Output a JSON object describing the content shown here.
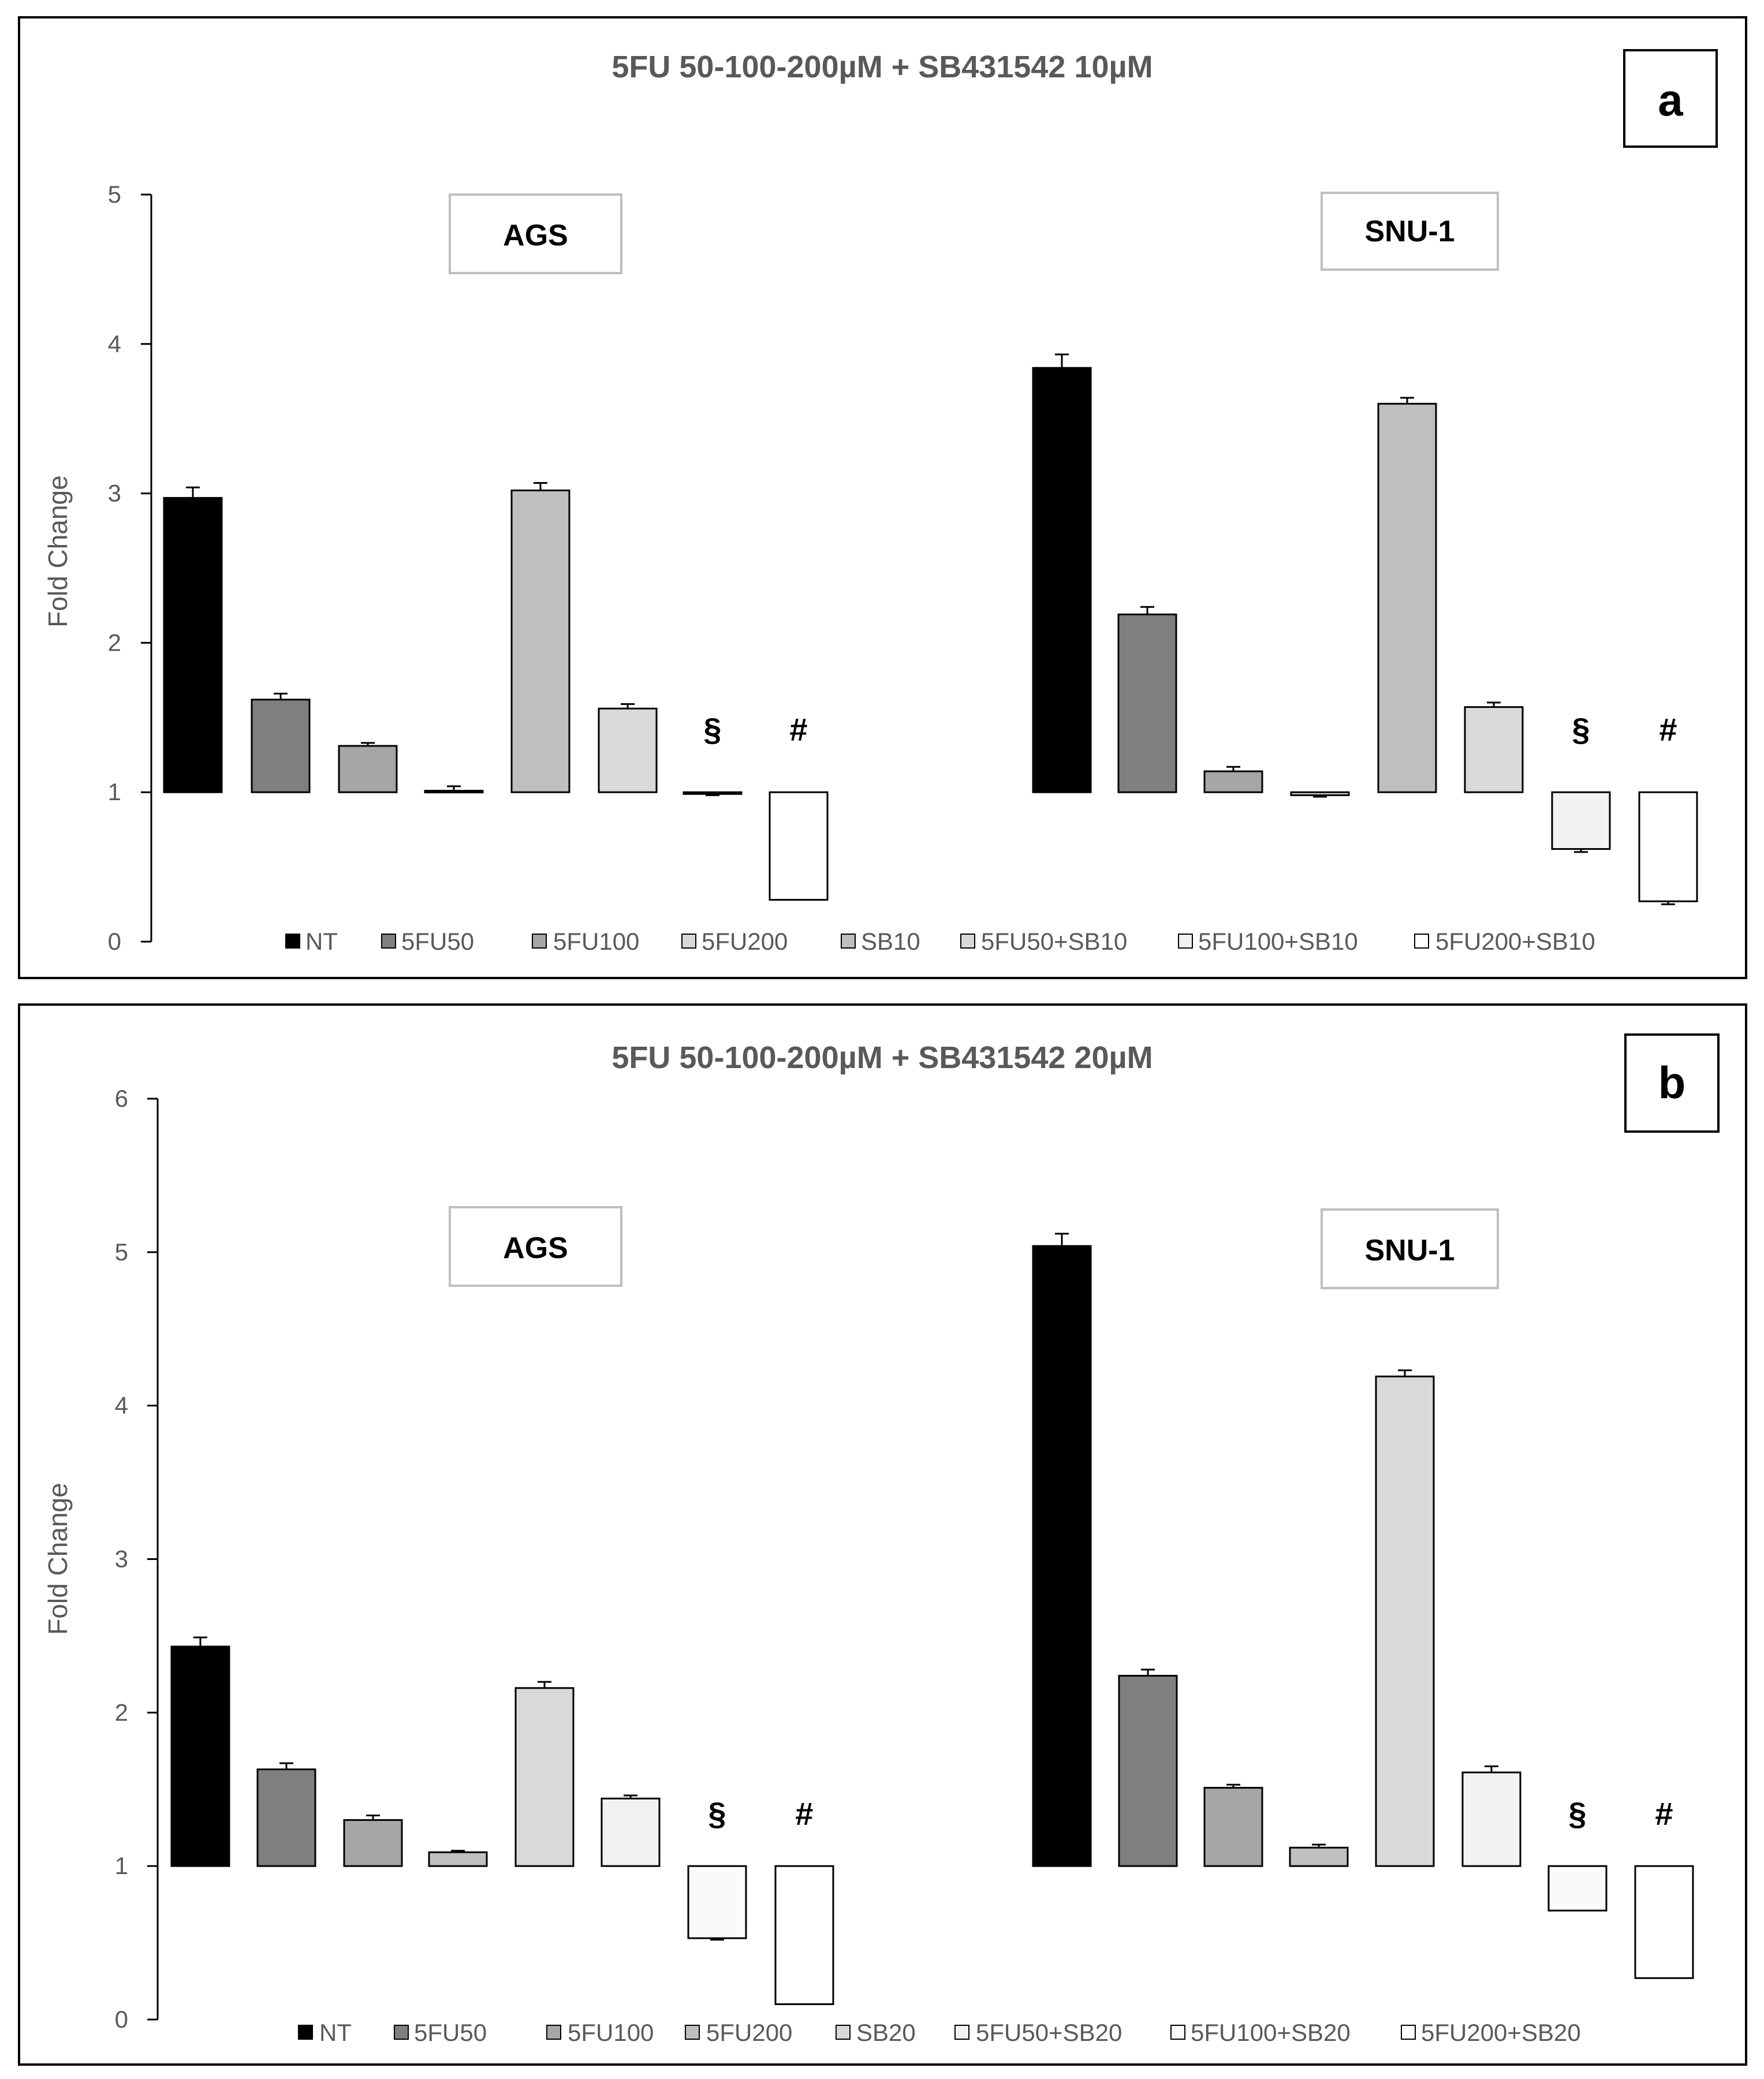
{
  "chart_data": [
    {
      "type": "bar",
      "panel_label": "a",
      "title": "5FU 50-100-200µM + SB431542 10µM",
      "ylabel": "Fold Change",
      "xlabel": "",
      "ylim": [
        0,
        5
      ],
      "yticks": [
        "0",
        "1",
        "2",
        "3",
        "4",
        "5"
      ],
      "baseline": 1,
      "groups": [
        {
          "label": "AGS",
          "values": [
            2.97,
            1.62,
            1.31,
            1.01,
            3.02,
            1.56,
            0.99,
            0.28
          ],
          "errors": [
            0.07,
            0.04,
            0.02,
            0.03,
            0.05,
            0.03,
            0.01,
            0.0
          ],
          "annotations": [
            "",
            "",
            "",
            "",
            "",
            "",
            "§",
            "#"
          ]
        },
        {
          "label": "SNU-1",
          "values": [
            3.84,
            2.19,
            1.14,
            0.98,
            3.6,
            1.57,
            0.62,
            0.27
          ],
          "errors": [
            0.09,
            0.05,
            0.03,
            0.01,
            0.04,
            0.03,
            0.02,
            0.02
          ],
          "annotations": [
            "",
            "",
            "",
            "",
            "",
            "",
            "§",
            "#"
          ]
        }
      ],
      "series": [
        {
          "name": "NT",
          "color": "#000000"
        },
        {
          "name": "5FU50",
          "color": "#7f7f7f"
        },
        {
          "name": "5FU100",
          "color": "#a6a6a6"
        },
        {
          "name": "5FU200",
          "color": "#d9d9d9"
        },
        {
          "name": "SB10",
          "color": "#bfbfbf"
        },
        {
          "name": "5FU50+SB10",
          "color": "#d9d9d9"
        },
        {
          "name": "5FU100+SB10",
          "color": "#f2f2f2"
        },
        {
          "name": "5FU200+SB10",
          "color": "#ffffff"
        }
      ],
      "legend": "bottom"
    },
    {
      "type": "bar",
      "panel_label": "b",
      "title": "5FU 50-100-200µM + SB431542 20µM",
      "ylabel": "Fold Change",
      "xlabel": "",
      "ylim": [
        0,
        6
      ],
      "yticks": [
        "0",
        "1",
        "2",
        "3",
        "4",
        "5",
        "6"
      ],
      "baseline": 1,
      "groups": [
        {
          "label": "AGS",
          "values": [
            2.43,
            1.63,
            1.3,
            1.09,
            2.16,
            1.44,
            0.53,
            0.1
          ],
          "errors": [
            0.06,
            0.04,
            0.03,
            0.01,
            0.04,
            0.02,
            0.01,
            0.0
          ],
          "annotations": [
            "",
            "",
            "",
            "",
            "",
            "",
            "§",
            "#"
          ]
        },
        {
          "label": "SNU-1",
          "values": [
            5.04,
            2.24,
            1.51,
            1.12,
            4.19,
            1.61,
            0.71,
            0.27
          ],
          "errors": [
            0.08,
            0.04,
            0.02,
            0.02,
            0.04,
            0.04,
            0.0,
            0.0
          ],
          "annotations": [
            "",
            "",
            "",
            "",
            "",
            "",
            "§",
            "#"
          ]
        }
      ],
      "series": [
        {
          "name": "NT",
          "color": "#000000"
        },
        {
          "name": "5FU50",
          "color": "#7f7f7f"
        },
        {
          "name": "5FU100",
          "color": "#a6a6a6"
        },
        {
          "name": "5FU200",
          "color": "#bfbfbf"
        },
        {
          "name": "SB20",
          "color": "#d9d9d9"
        },
        {
          "name": "5FU50+SB20",
          "color": "#f2f2f2"
        },
        {
          "name": "5FU100+SB20",
          "color": "#fafafa"
        },
        {
          "name": "5FU200+SB20",
          "color": "#ffffff"
        }
      ],
      "legend": "bottom"
    }
  ]
}
